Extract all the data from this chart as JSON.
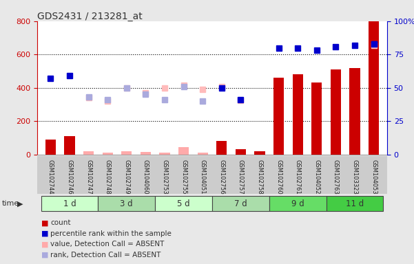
{
  "title": "GDS2431 / 213281_at",
  "samples": [
    "GSM102744",
    "GSM102746",
    "GSM102747",
    "GSM102748",
    "GSM102749",
    "GSM104060",
    "GSM102753",
    "GSM102755",
    "GSM104051",
    "GSM102756",
    "GSM102757",
    "GSM102758",
    "GSM102760",
    "GSM102761",
    "GSM104052",
    "GSM102763",
    "GSM103323",
    "GSM104053"
  ],
  "time_groups": [
    {
      "label": "1 d",
      "start": 0,
      "end": 3
    },
    {
      "label": "3 d",
      "start": 3,
      "end": 6
    },
    {
      "label": "5 d",
      "start": 6,
      "end": 9
    },
    {
      "label": "7 d",
      "start": 9,
      "end": 12
    },
    {
      "label": "9 d",
      "start": 12,
      "end": 15
    },
    {
      "label": "11 d",
      "start": 15,
      "end": 18
    }
  ],
  "tg_colors": [
    "#ccffcc",
    "#aaddaa",
    "#ccffcc",
    "#aaddaa",
    "#66dd66",
    "#44cc44"
  ],
  "count_values": [
    90,
    110,
    20,
    10,
    20,
    15,
    10,
    45,
    10,
    80,
    30,
    20,
    460,
    480,
    430,
    510,
    520,
    800
  ],
  "count_absent": [
    false,
    false,
    true,
    true,
    true,
    true,
    true,
    true,
    true,
    false,
    false,
    false,
    false,
    false,
    false,
    false,
    false,
    false
  ],
  "count_color_present": "#cc0000",
  "count_color_absent": "#ffaaaa",
  "percentile_values": [
    57,
    59,
    null,
    null,
    null,
    null,
    null,
    null,
    null,
    null,
    null,
    null,
    80,
    80,
    78,
    81,
    82,
    83
  ],
  "rank_values": [
    null,
    null,
    43,
    41,
    50,
    45,
    41,
    51,
    40,
    50,
    41,
    null,
    null,
    null,
    null,
    null,
    null,
    83
  ],
  "rank_absent": [
    null,
    null,
    true,
    true,
    true,
    true,
    true,
    true,
    true,
    false,
    false,
    null,
    null,
    null,
    null,
    null,
    null,
    false
  ],
  "value_absent": [
    null,
    null,
    340,
    320,
    400,
    370,
    400,
    415,
    390,
    405,
    325,
    null,
    null,
    null,
    null,
    null,
    null,
    655
  ],
  "ylim_left": [
    0,
    800
  ],
  "ylim_right": [
    0,
    100
  ],
  "yticks_left": [
    0,
    200,
    400,
    600,
    800
  ],
  "yticks_right": [
    0,
    25,
    50,
    75,
    100
  ],
  "grid_values": [
    200,
    400,
    600
  ],
  "bg_color": "#e8e8e8",
  "plot_bg": "#ffffff",
  "left_axis_color": "#cc0000",
  "right_axis_color": "#0000cc",
  "legend_items": [
    {
      "color": "#cc0000",
      "label": "count"
    },
    {
      "color": "#0000cc",
      "label": "percentile rank within the sample"
    },
    {
      "color": "#ffaaaa",
      "label": "value, Detection Call = ABSENT"
    },
    {
      "color": "#aaaadd",
      "label": "rank, Detection Call = ABSENT"
    }
  ]
}
